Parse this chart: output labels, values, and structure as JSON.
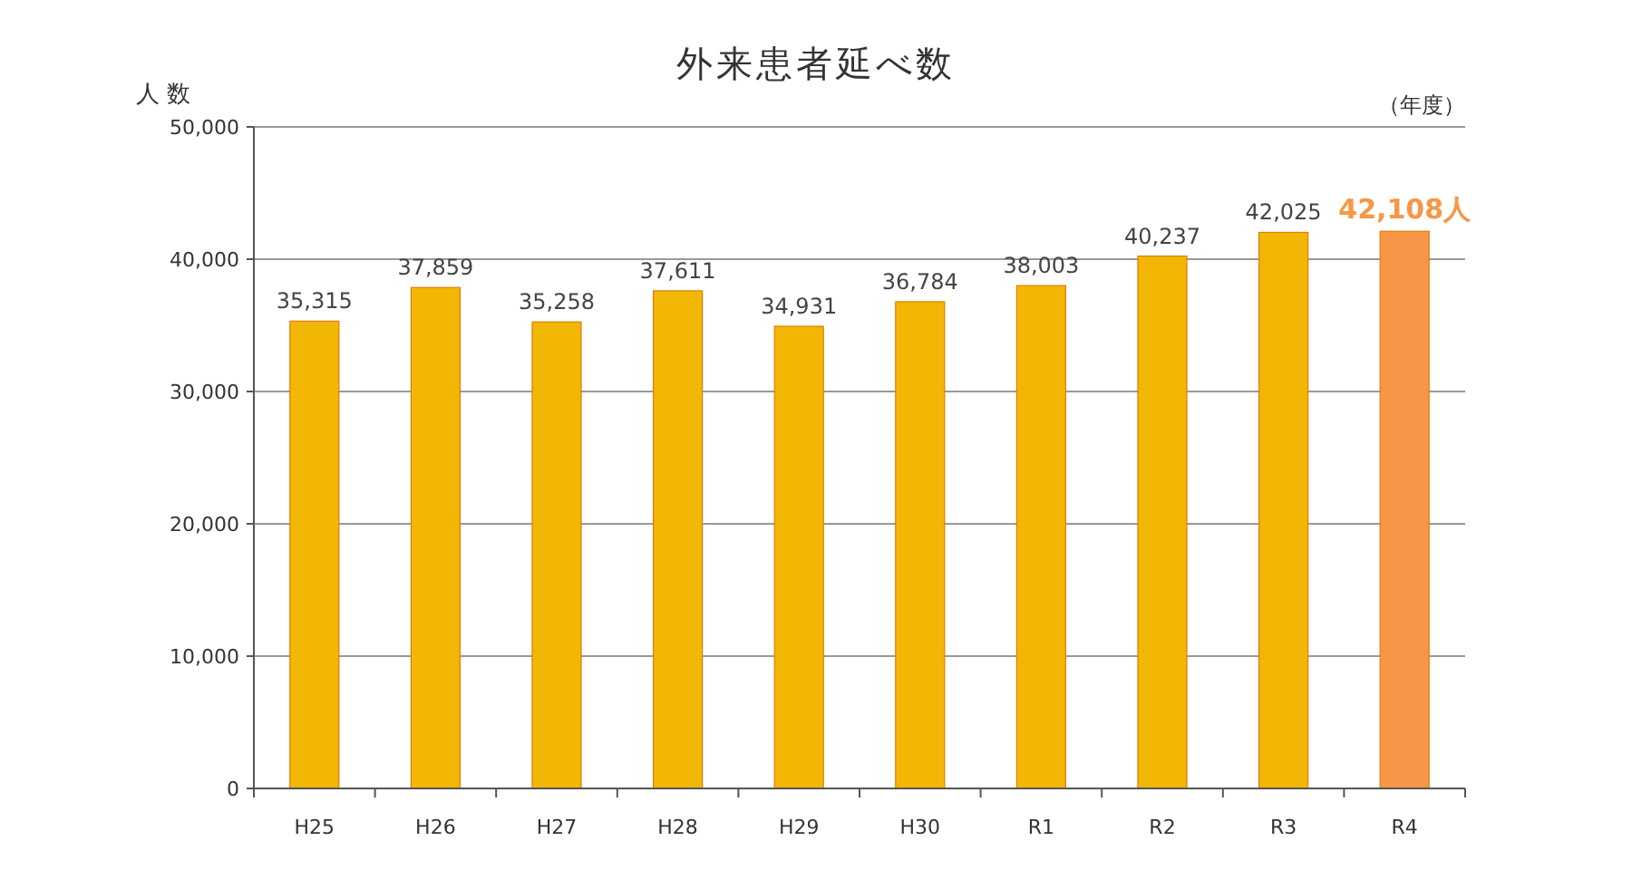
{
  "chart_data": {
    "type": "bar",
    "title": "外来患者延べ数",
    "ylabel": "人 数",
    "annotations": [
      "（年度）"
    ],
    "categories": [
      "H25",
      "H26",
      "H27",
      "H28",
      "H29",
      "H30",
      "R1",
      "R2",
      "R3",
      "R4"
    ],
    "values": [
      35315,
      37859,
      35258,
      37611,
      34931,
      36784,
      38003,
      40237,
      42025,
      42108
    ],
    "colors": [
      "#f2b705",
      "#f2b705",
      "#f2b705",
      "#f2b705",
      "#f2b705",
      "#f2b705",
      "#f2b705",
      "#f2b705",
      "#f2b705",
      "#f79646"
    ],
    "value_labels": [
      "35,315",
      "37,859",
      "35,258",
      "37,611",
      "34,931",
      "36,784",
      "38,003",
      "40,237",
      "42,025",
      "42,108人"
    ],
    "ylim": [
      0,
      50000
    ],
    "yticks": [
      0,
      {
        "value": 10000,
        "label": "10,000"
      },
      {
        "value": 20000,
        "label": "20,000"
      },
      {
        "value": 30000,
        "label": "30,000"
      },
      {
        "value": 40000,
        "label": "40,000"
      },
      {
        "value": 50000,
        "label": "50,000"
      }
    ],
    "grid": "y"
  }
}
